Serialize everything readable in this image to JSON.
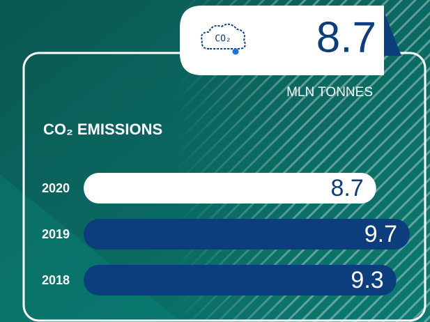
{
  "chart_data": {
    "type": "bar",
    "orientation": "horizontal",
    "title": "CO₂ EMISSIONS",
    "icon_text": "CO₂",
    "headline": {
      "value": 8.7,
      "unit": "MLN TONNES"
    },
    "categories": [
      "2020",
      "2019",
      "2018"
    ],
    "values": [
      8.7,
      9.7,
      9.3
    ],
    "colors": [
      "#ffffff",
      "#0c3d7c",
      "#0c3d7c"
    ]
  }
}
